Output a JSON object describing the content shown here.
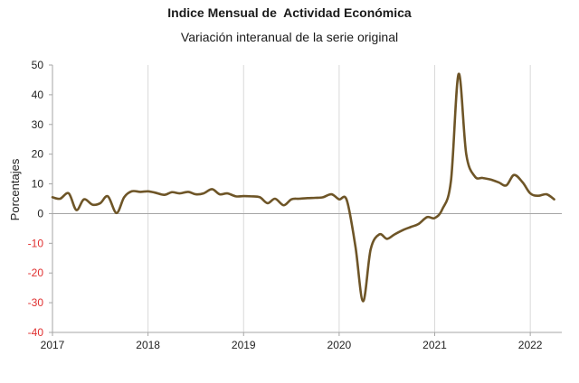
{
  "chart_data": {
    "type": "line",
    "title": "Indice Mensual de  Actividad Económica",
    "subtitle": "Variación interanual de la serie original",
    "ylabel": "Porcentajes",
    "xlabel": "",
    "ylim": [
      -40,
      50
    ],
    "xlim": [
      2017.0,
      2022.33
    ],
    "y_ticks": [
      50,
      40,
      30,
      20,
      10,
      0,
      -10,
      -20,
      -30,
      -40
    ],
    "x_ticks": [
      2017,
      2018,
      2019,
      2020,
      2021,
      2022
    ],
    "grid": "vertical",
    "legend": "none",
    "series": [
      {
        "color": "#6e5527",
        "x": [
          2017.0,
          2017.08,
          2017.17,
          2017.25,
          2017.33,
          2017.42,
          2017.5,
          2017.58,
          2017.67,
          2017.75,
          2017.83,
          2017.92,
          2018.0,
          2018.08,
          2018.17,
          2018.25,
          2018.33,
          2018.42,
          2018.5,
          2018.58,
          2018.67,
          2018.75,
          2018.83,
          2018.92,
          2019.0,
          2019.08,
          2019.17,
          2019.25,
          2019.33,
          2019.42,
          2019.5,
          2019.58,
          2019.67,
          2019.75,
          2019.83,
          2019.92,
          2020.0,
          2020.08,
          2020.17,
          2020.25,
          2020.33,
          2020.42,
          2020.5,
          2020.58,
          2020.67,
          2020.75,
          2020.83,
          2020.92,
          2021.0,
          2021.08,
          2021.17,
          2021.25,
          2021.33,
          2021.42,
          2021.5,
          2021.58,
          2021.67,
          2021.75,
          2021.83,
          2021.92,
          2022.0,
          2022.08,
          2022.17,
          2022.25
        ],
        "y": [
          5.5,
          5.0,
          6.8,
          1.2,
          4.8,
          3.0,
          3.5,
          5.8,
          0.2,
          5.5,
          7.5,
          7.3,
          7.5,
          7.0,
          6.3,
          7.2,
          6.8,
          7.3,
          6.5,
          6.8,
          8.2,
          6.5,
          6.8,
          5.8,
          5.9,
          5.8,
          5.5,
          3.5,
          5.0,
          2.8,
          4.8,
          5.0,
          5.2,
          5.3,
          5.5,
          6.5,
          4.8,
          4.5,
          -11.0,
          -29.5,
          -12.0,
          -7.0,
          -8.5,
          -7.0,
          -5.5,
          -4.5,
          -3.5,
          -1.2,
          -1.5,
          1.5,
          11.0,
          47.0,
          20.0,
          12.5,
          12.0,
          11.5,
          10.5,
          9.5,
          13.0,
          10.5,
          6.8,
          6.0,
          6.5,
          4.8
        ]
      }
    ]
  }
}
